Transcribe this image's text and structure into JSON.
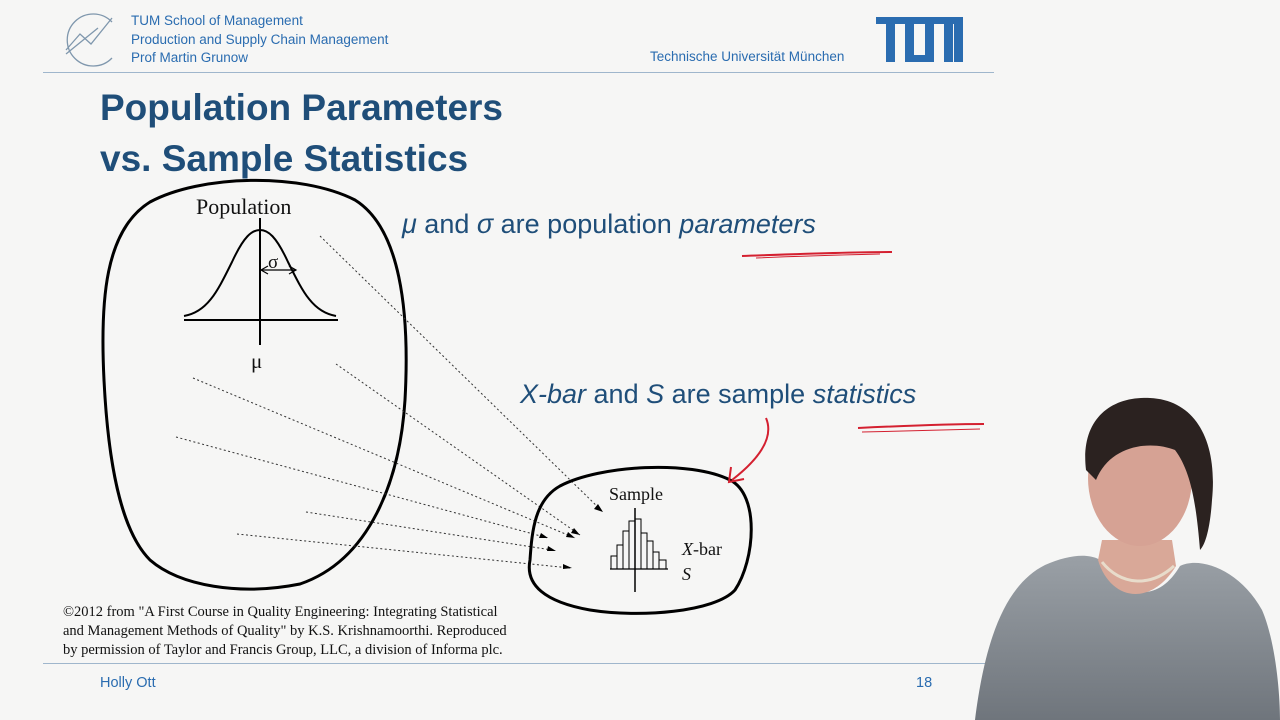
{
  "header": {
    "lines": [
      "TUM School of Management",
      "Production and Supply Chain Management",
      "Prof Martin Grunow"
    ],
    "university": "Technische Universität München",
    "logo_text": "TUM"
  },
  "title": {
    "line1": "Population Parameters",
    "line2": "vs. Sample Statistics"
  },
  "statements": {
    "parameters": {
      "sym1": "μ",
      "and": " and ",
      "sym2": "σ",
      "rest": " are population ",
      "emph": "parameters"
    },
    "statistics": {
      "sym1": "X-bar",
      "and": " and ",
      "sym2": "S",
      "rest": " are sample ",
      "emph": "statistics"
    }
  },
  "diagram": {
    "population_label": "Population",
    "sigma": "σ",
    "mu": "μ",
    "sample_label": "Sample",
    "xbar_italic": "X",
    "xbar_rest": "-bar",
    "s_label": "S"
  },
  "caption": [
    "©2012 from \"A First Course in Quality Engineering: Integrating Statistical",
    "and Management Methods of Quality\" by K.S. Krishnamoorthi. Reproduced",
    "by permission of Taylor and Francis Group, LLC, a division of Informa plc."
  ],
  "footer": {
    "presenter": "Holly Ott",
    "page": "18"
  },
  "colors": {
    "title": "#1f4e79",
    "accent_blue": "#2a6cb0",
    "annotation_red": "#d42030"
  }
}
